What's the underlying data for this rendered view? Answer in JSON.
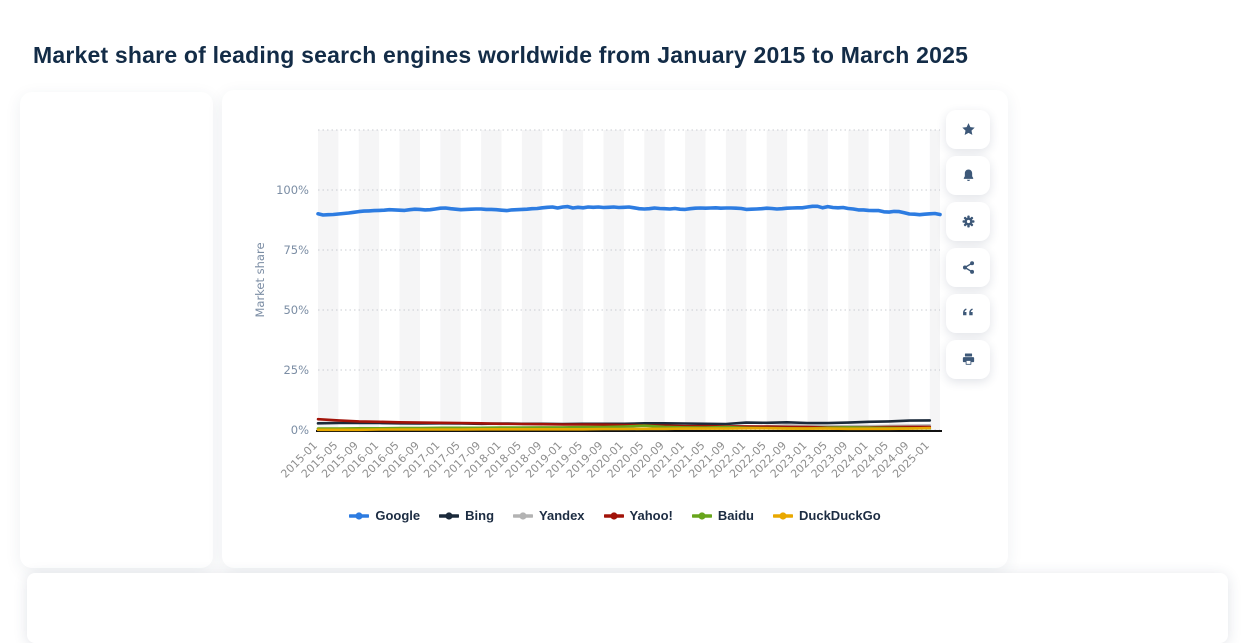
{
  "page": {
    "title": "Market share of leading search engines worldwide from January 2015 to March 2025"
  },
  "theme": {
    "title_color": "#132c47",
    "icon_color": "#3d5878",
    "band_color": "#f5f5f6",
    "grid_color": "#c9ccd1",
    "axis_line_color": "#111111",
    "ytick_color": "#7b8da4",
    "xtick_color": "#8e8e8e",
    "legend_text_color": "#1c2c42"
  },
  "toolbar": {
    "buttons": [
      {
        "name": "favorite",
        "icon": "star-icon"
      },
      {
        "name": "alerts",
        "icon": "bell-icon"
      },
      {
        "name": "settings",
        "icon": "gear-icon"
      },
      {
        "name": "share",
        "icon": "share-icon"
      },
      {
        "name": "cite",
        "icon": "quote-icon"
      },
      {
        "name": "print",
        "icon": "printer-icon"
      }
    ]
  },
  "chart_data": {
    "type": "line",
    "title": "Market share of leading search engines worldwide from January 2015 to March 2025",
    "xlabel": "",
    "ylabel": "Market share",
    "ylim": [
      0,
      125
    ],
    "yticks": [
      0,
      25,
      50,
      75,
      100
    ],
    "yticklabels": [
      "0%",
      "25%",
      "50%",
      "75%",
      "100%"
    ],
    "grid": "dotted-horizontal",
    "plot_bands": "alternating-vertical",
    "legend_position": "bottom-center",
    "span_months": 122,
    "x_start": "2015-01",
    "x_end": "2025-03",
    "xticklabels": [
      "2015-01",
      "2015-05",
      "2015-09",
      "2016-01",
      "2016-05",
      "2016-09",
      "2017-01",
      "2017-05",
      "2017-09",
      "2018-01",
      "2018-05",
      "2018-09",
      "2019-01",
      "2019-05",
      "2019-09",
      "2020-01",
      "2020-05",
      "2020-09",
      "2021-01",
      "2021-05",
      "2021-09",
      "2022-01",
      "2022-05",
      "2022-09",
      "2023-01",
      "2023-05",
      "2023-09",
      "2024-01",
      "2024-05",
      "2024-09",
      "2025-01"
    ],
    "series": [
      {
        "name": "Google",
        "color": "#2d7ce1",
        "line_width": 3.6,
        "interval_months": 1,
        "values": [
          90.1,
          89.6,
          89.7,
          89.8,
          90.0,
          90.2,
          90.4,
          90.7,
          91.0,
          91.2,
          91.3,
          91.4,
          91.5,
          91.6,
          91.8,
          91.7,
          91.6,
          91.5,
          91.8,
          92.0,
          91.9,
          91.7,
          91.8,
          92.1,
          92.4,
          92.5,
          92.2,
          92.0,
          91.8,
          91.9,
          92.0,
          92.1,
          92.1,
          91.9,
          91.9,
          91.8,
          91.6,
          91.4,
          91.7,
          91.8,
          91.9,
          92.0,
          92.2,
          92.3,
          92.6,
          92.8,
          92.9,
          92.5,
          92.9,
          93.1,
          92.5,
          92.8,
          92.6,
          92.9,
          92.8,
          92.9,
          92.7,
          92.8,
          92.9,
          92.7,
          92.8,
          92.9,
          92.6,
          92.2,
          92.1,
          92.2,
          92.5,
          92.3,
          92.2,
          92.1,
          92.3,
          92.0,
          91.9,
          92.2,
          92.4,
          92.5,
          92.4,
          92.5,
          92.6,
          92.4,
          92.5,
          92.5,
          92.4,
          92.3,
          91.9,
          92.0,
          92.1,
          92.2,
          92.4,
          92.3,
          92.1,
          92.2,
          92.4,
          92.5,
          92.6,
          92.6,
          92.9,
          93.2,
          93.2,
          92.6,
          93.1,
          92.7,
          92.6,
          92.7,
          92.3,
          92.1,
          91.7,
          91.7,
          91.5,
          91.4,
          91.4,
          90.9,
          90.8,
          91.1,
          91.0,
          90.5,
          90.0,
          89.9,
          89.7,
          89.9,
          90.1,
          90.2,
          89.8
        ]
      },
      {
        "name": "Bing",
        "color": "#1b2a3b",
        "line_width": 2.6,
        "interval_months": 4,
        "values": [
          2.8,
          2.9,
          2.9,
          2.9,
          2.8,
          2.7,
          2.8,
          2.7,
          2.6,
          2.7,
          2.6,
          2.6,
          2.5,
          2.6,
          2.6,
          2.6,
          2.8,
          2.8,
          2.7,
          2.6,
          2.5,
          3.1,
          3.0,
          3.2,
          2.9,
          2.9,
          3.1,
          3.4,
          3.6,
          3.9,
          4.0
        ]
      },
      {
        "name": "Yandex",
        "color": "#b3b3b3",
        "line_width": 2.6,
        "interval_months": 4,
        "values": [
          0.5,
          0.5,
          0.5,
          0.5,
          0.5,
          0.5,
          0.5,
          0.5,
          0.5,
          0.5,
          0.5,
          0.5,
          0.5,
          0.5,
          0.5,
          0.5,
          0.5,
          0.5,
          0.6,
          0.7,
          0.8,
          1.0,
          1.5,
          1.9,
          1.8,
          1.7,
          1.6,
          1.6,
          1.7,
          1.8,
          1.9
        ]
      },
      {
        "name": "Yahoo!",
        "color": "#a21309",
        "line_width": 2.6,
        "interval_months": 4,
        "values": [
          4.5,
          4.0,
          3.6,
          3.4,
          3.2,
          3.1,
          3.0,
          2.9,
          2.8,
          2.6,
          2.5,
          2.4,
          2.3,
          2.3,
          2.2,
          2.1,
          1.9,
          1.8,
          1.6,
          1.6,
          1.5,
          1.5,
          1.4,
          1.3,
          1.2,
          1.1,
          1.1,
          1.1,
          1.2,
          1.3,
          1.3
        ]
      },
      {
        "name": "Baidu",
        "color": "#68a51c",
        "line_width": 2.6,
        "interval_months": 4,
        "values": [
          0.6,
          0.6,
          0.7,
          0.7,
          0.8,
          0.8,
          0.9,
          0.9,
          0.9,
          1.0,
          1.0,
          1.1,
          1.1,
          1.2,
          1.2,
          1.4,
          1.8,
          1.3,
          1.1,
          1.0,
          1.2,
          0.9,
          0.8,
          0.7,
          0.6,
          0.9,
          1.1,
          0.9,
          0.8,
          0.7,
          0.7
        ]
      },
      {
        "name": "DuckDuckGo",
        "color": "#e9a800",
        "line_width": 2.6,
        "interval_months": 4,
        "values": [
          0.1,
          0.1,
          0.1,
          0.2,
          0.2,
          0.2,
          0.2,
          0.2,
          0.3,
          0.3,
          0.3,
          0.3,
          0.3,
          0.3,
          0.4,
          0.4,
          0.5,
          0.5,
          0.6,
          0.6,
          0.6,
          0.7,
          0.7,
          0.6,
          0.6,
          0.6,
          0.5,
          0.5,
          0.5,
          0.6,
          0.8
        ]
      }
    ]
  }
}
